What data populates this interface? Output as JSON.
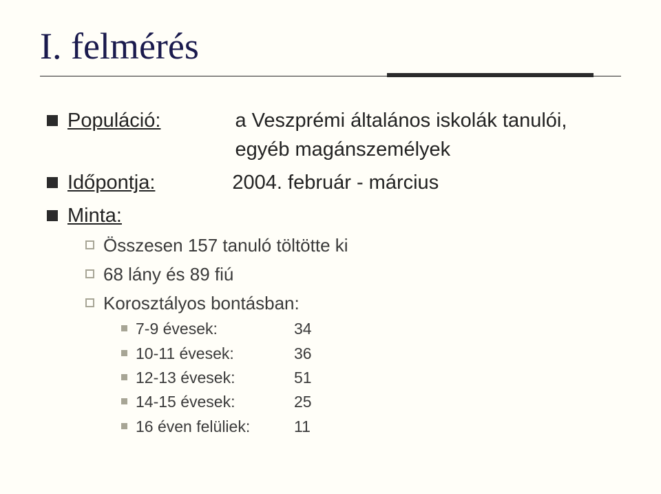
{
  "colors": {
    "background": "#fffef8",
    "title": "#1a1a4d",
    "text": "#222222",
    "subtext": "#3a3a3a",
    "bullet_l1": "#2b2b2b",
    "bullet_l2_border": "#a7a595",
    "bullet_l3": "#a7a595",
    "rule": "#2b2b2b"
  },
  "title": "I. felmérés",
  "population": {
    "label": "Populáció:",
    "value_line1": "a Veszprémi általános iskolák tanulói,",
    "value_line2": "egyéb magánszemélyek"
  },
  "timing": {
    "label": "Időpontja:",
    "value": "2004. február - március"
  },
  "sample": {
    "label": "Minta:",
    "sub1": "Összesen 157 tanuló töltötte ki",
    "sub2": "68 lány és 89 fiú",
    "sub3": "Korosztályos bontásban:",
    "age_breakdown": [
      {
        "label": "7-9 évesek:",
        "count": "34"
      },
      {
        "label": "10-11 évesek:",
        "count": "36"
      },
      {
        "label": "12-13 évesek:",
        "count": "51"
      },
      {
        "label": "14-15 évesek:",
        "count": "25"
      },
      {
        "label": "16 éven felüliek:",
        "count": "11"
      }
    ]
  }
}
